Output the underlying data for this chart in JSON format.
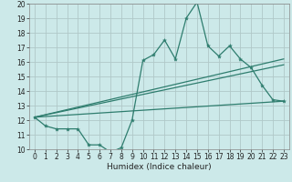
{
  "xlabel": "Humidex (Indice chaleur)",
  "xlim": [
    -0.5,
    23.5
  ],
  "ylim": [
    10,
    20
  ],
  "yticks": [
    10,
    11,
    12,
    13,
    14,
    15,
    16,
    17,
    18,
    19,
    20
  ],
  "xticks": [
    0,
    1,
    2,
    3,
    4,
    5,
    6,
    7,
    8,
    9,
    10,
    11,
    12,
    13,
    14,
    15,
    16,
    17,
    18,
    19,
    20,
    21,
    22,
    23
  ],
  "background_color": "#cce9e9",
  "grid_color": "#b0c8c8",
  "line_color": "#2e7d6e",
  "line1_x": [
    0,
    1,
    2,
    3,
    4,
    5,
    6,
    7,
    8,
    9,
    10,
    11,
    12,
    13,
    14,
    15,
    16,
    17,
    18,
    19,
    20,
    21,
    22,
    23
  ],
  "line1_y": [
    12.2,
    11.6,
    11.4,
    11.4,
    11.4,
    10.3,
    10.3,
    9.8,
    10.1,
    12.0,
    16.1,
    16.5,
    17.5,
    16.2,
    19.0,
    20.1,
    17.1,
    16.4,
    17.1,
    16.2,
    15.6,
    14.4,
    13.4,
    13.3
  ],
  "line2_x": [
    0,
    23
  ],
  "line2_y": [
    12.2,
    13.3
  ],
  "line3_x": [
    0,
    23
  ],
  "line3_y": [
    12.2,
    15.8
  ],
  "line4_x": [
    0,
    23
  ],
  "line4_y": [
    12.2,
    16.2
  ],
  "tick_fontsize": 5.5,
  "xlabel_fontsize": 6.5
}
